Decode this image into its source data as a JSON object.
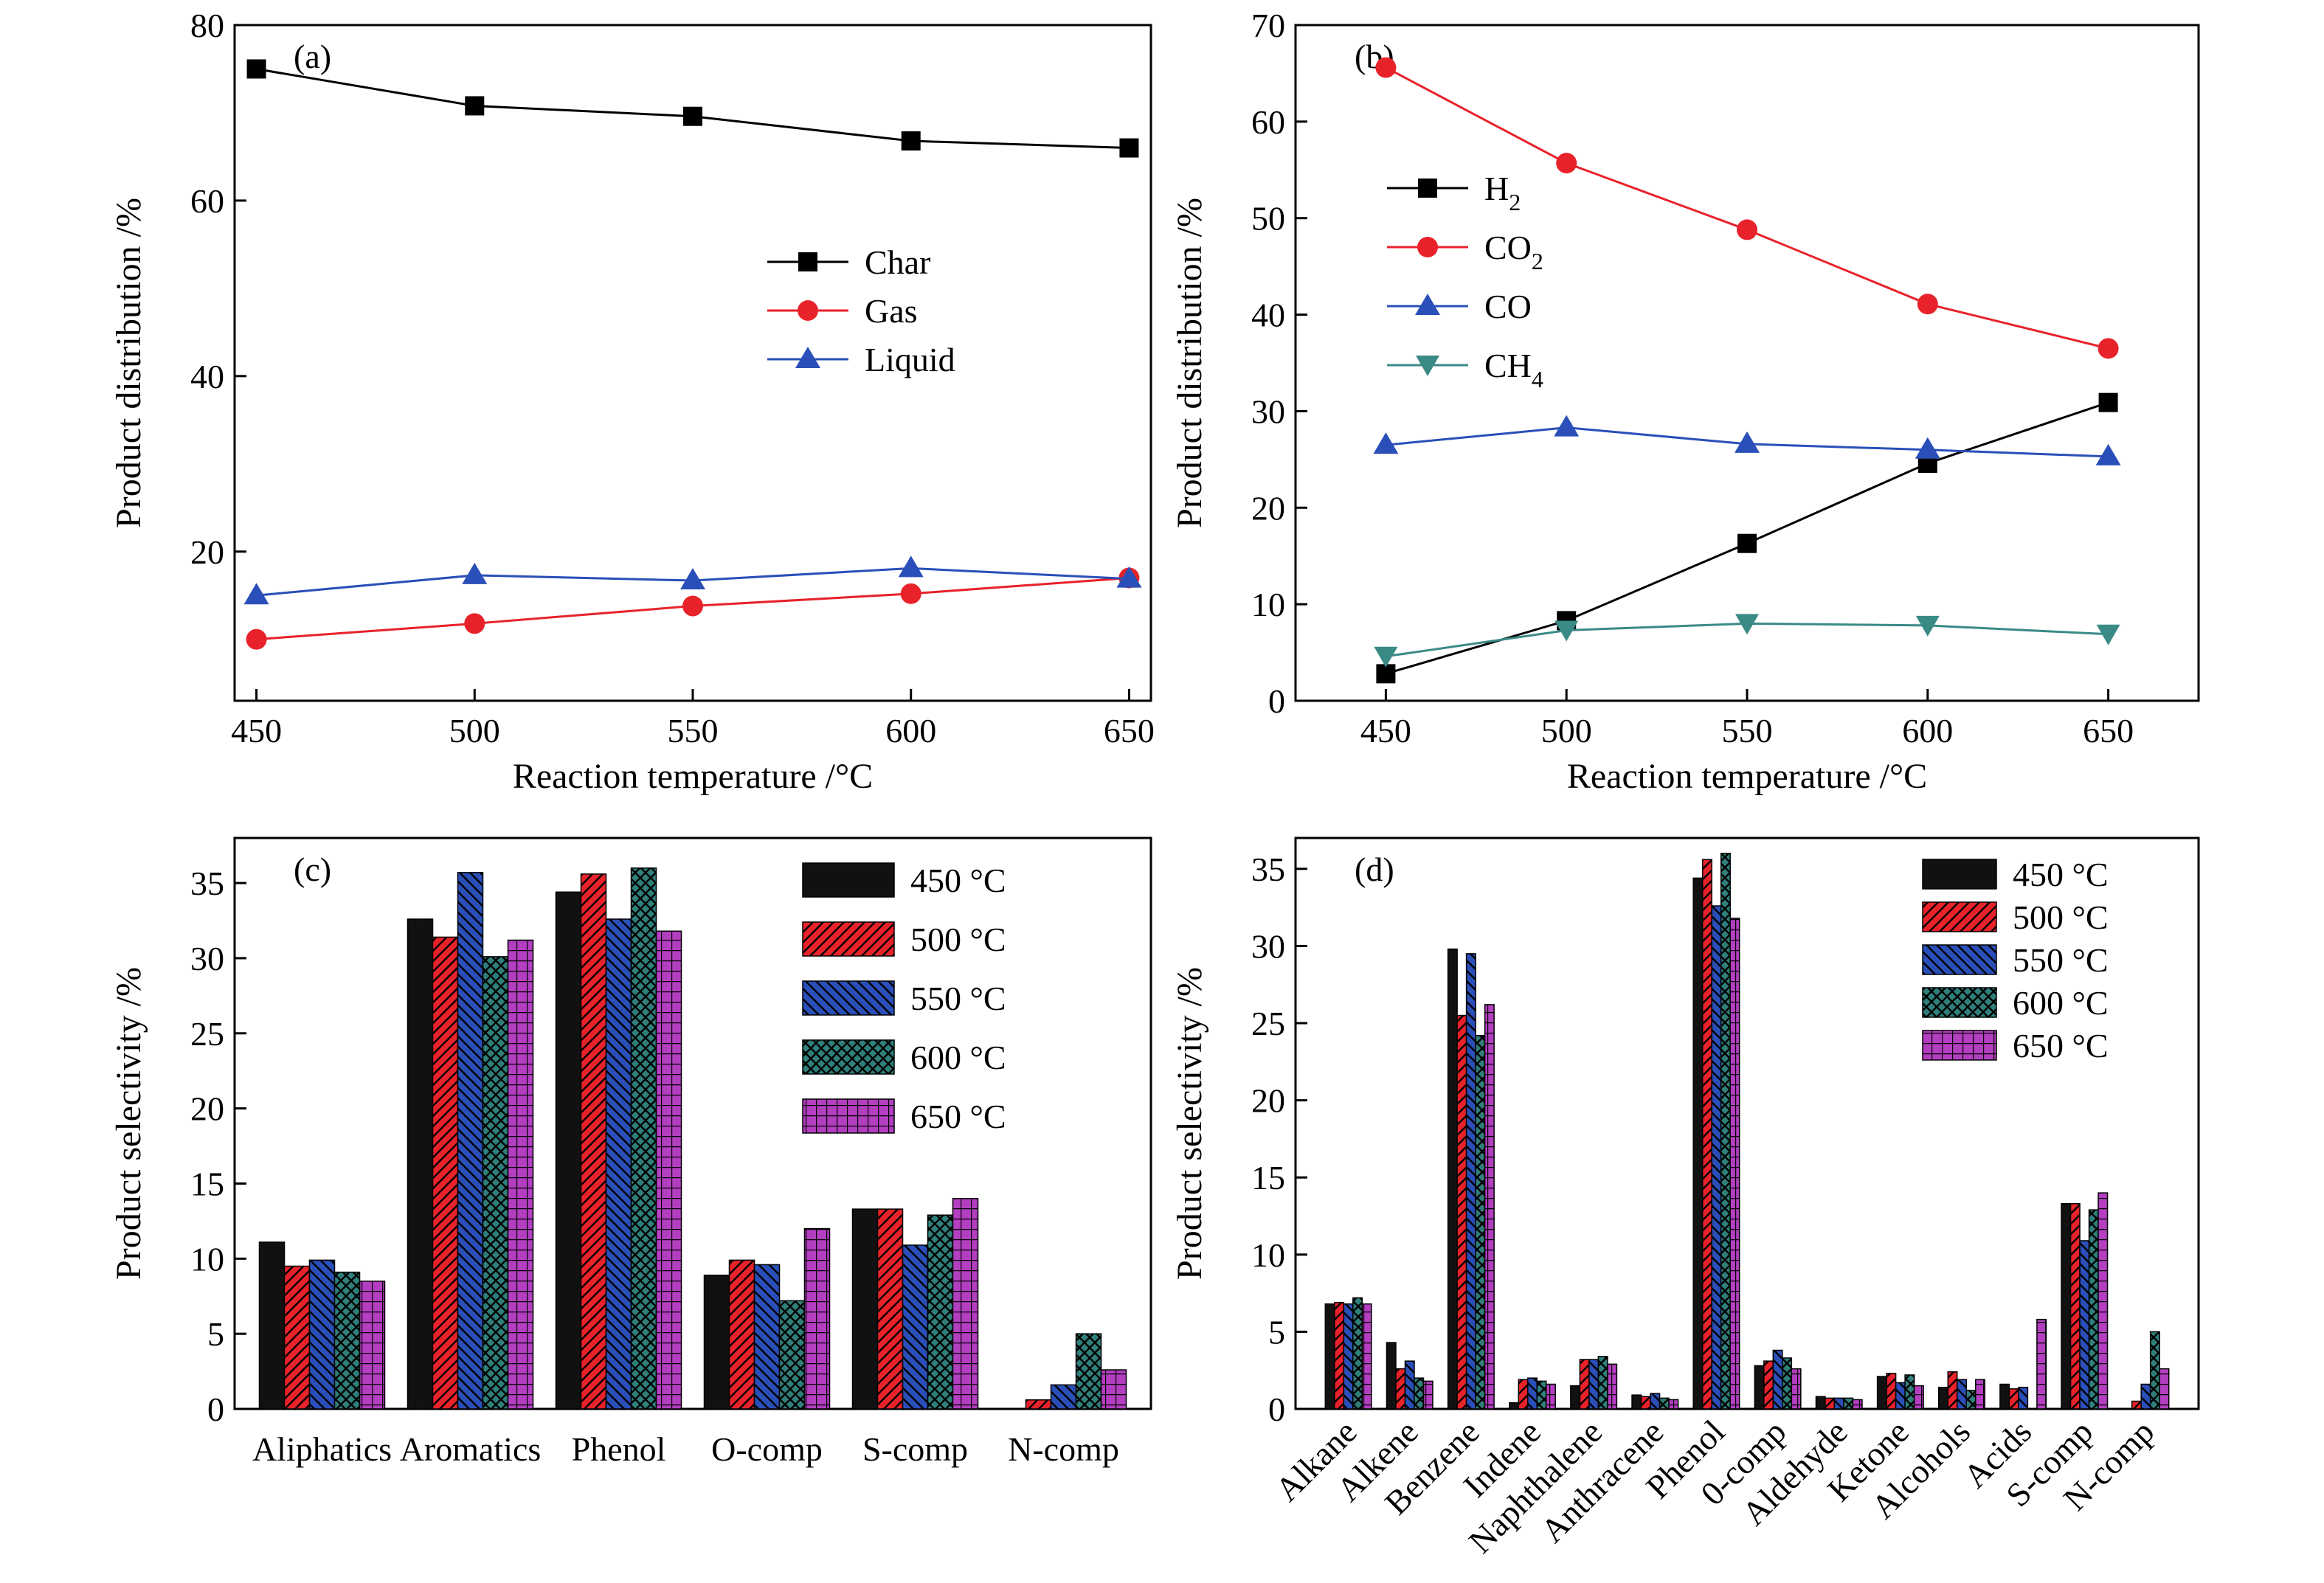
{
  "colors": {
    "black": "#111111",
    "red": "#e8222a",
    "blue": "#2a4fb8",
    "teal": "#2f7f7a",
    "purple": "#b33fc0",
    "line_black": "#000000",
    "line_red": "#e8222a",
    "line_blue": "#2a4fb8",
    "line_teal": "#3a8a86"
  },
  "chart_data": [
    {
      "id": "a",
      "type": "line",
      "panel_label": "(a)",
      "xlabel": "Reaction temperature /°C",
      "ylabel": "Product distribution /%",
      "x": [
        450,
        500,
        550,
        600,
        650
      ],
      "xlim": [
        445,
        655
      ],
      "ylim": [
        3,
        80
      ],
      "xticks": [
        450,
        500,
        550,
        600,
        650
      ],
      "yticks": [
        20,
        40,
        60,
        80
      ],
      "legend_position": "center-right",
      "series": [
        {
          "name": "Char",
          "marker": "square",
          "color": "line_black",
          "values": [
            75.0,
            70.8,
            69.6,
            66.8,
            66.0
          ]
        },
        {
          "name": "Gas",
          "marker": "circle",
          "color": "line_red",
          "values": [
            10.0,
            11.8,
            13.8,
            15.2,
            17.0
          ]
        },
        {
          "name": "Liquid",
          "marker": "triangle-up",
          "color": "line_blue",
          "values": [
            15.0,
            17.3,
            16.7,
            18.1,
            16.9
          ]
        }
      ]
    },
    {
      "id": "b",
      "type": "line",
      "panel_label": "(b)",
      "xlabel": "Reaction temperature /°C",
      "ylabel": "Product distribution /%",
      "x": [
        450,
        500,
        550,
        600,
        650
      ],
      "xlim": [
        425,
        675
      ],
      "ylim": [
        0,
        70
      ],
      "xticks": [
        450,
        500,
        550,
        600,
        650
      ],
      "yticks": [
        0,
        10,
        20,
        30,
        40,
        50,
        60,
        70
      ],
      "legend_position": "upper-left",
      "series": [
        {
          "name": "H2",
          "label_main": "H",
          "label_sub": "2",
          "marker": "square",
          "color": "line_black",
          "values": [
            2.8,
            8.3,
            16.3,
            24.6,
            30.9
          ]
        },
        {
          "name": "CO2",
          "label_main": "CO",
          "label_sub": "2",
          "marker": "circle",
          "color": "line_red",
          "values": [
            65.6,
            55.7,
            48.8,
            41.1,
            36.5
          ]
        },
        {
          "name": "CO",
          "label_main": "CO",
          "label_sub": "",
          "marker": "triangle-up",
          "color": "line_blue",
          "values": [
            26.5,
            28.3,
            26.6,
            26.0,
            25.3
          ]
        },
        {
          "name": "CH4",
          "label_main": "CH",
          "label_sub": "4",
          "marker": "triangle-down",
          "color": "line_teal",
          "values": [
            4.6,
            7.3,
            8.0,
            7.8,
            6.9
          ]
        }
      ]
    },
    {
      "id": "c",
      "type": "bar",
      "panel_label": "(c)",
      "xlabel": "",
      "ylabel": "Product selectivity /%",
      "ylim": [
        0,
        38
      ],
      "yticks": [
        0,
        5,
        10,
        15,
        20,
        25,
        30,
        35
      ],
      "legend_position": "top-right",
      "categories": [
        "Aliphatics",
        "Aromatics",
        "Phenol",
        "O-comp",
        "S-comp",
        "N-comp"
      ],
      "series": [
        {
          "name": "450 °C",
          "color": "black",
          "pattern": "solid",
          "values": [
            11.1,
            32.6,
            34.4,
            8.9,
            13.3,
            0.0
          ]
        },
        {
          "name": "500 °C",
          "color": "red",
          "pattern": "hatch-fwd",
          "values": [
            9.5,
            31.4,
            35.6,
            9.9,
            13.3,
            0.6
          ]
        },
        {
          "name": "550 °C",
          "color": "blue",
          "pattern": "hatch-back",
          "values": [
            9.9,
            35.7,
            32.6,
            9.6,
            10.9,
            1.6
          ]
        },
        {
          "name": "600 °C",
          "color": "teal",
          "pattern": "crosshatch",
          "values": [
            9.1,
            30.1,
            36.0,
            7.2,
            12.9,
            5.0
          ]
        },
        {
          "name": "650 °C",
          "color": "purple",
          "pattern": "grid",
          "values": [
            8.5,
            31.2,
            31.8,
            12.0,
            14.0,
            2.6
          ]
        }
      ]
    },
    {
      "id": "d",
      "type": "bar",
      "panel_label": "(d)",
      "xlabel": "",
      "ylabel": "Product selectivity /%",
      "ylim": [
        0,
        37
      ],
      "yticks": [
        0,
        5,
        10,
        15,
        20,
        25,
        30,
        35
      ],
      "legend_position": "top-right",
      "categories": [
        "Alkane",
        "Alkene",
        "Benzene",
        "Indene",
        "Naphthalene",
        "Anthracene",
        "Phenol",
        "0-comp",
        "Aldehyde",
        "Ketone",
        "Alcohols",
        "Acids",
        "S-comp",
        "N-comp"
      ],
      "series": [
        {
          "name": "450 °C",
          "color": "black",
          "pattern": "solid",
          "values": [
            6.8,
            4.3,
            29.8,
            0.4,
            1.5,
            0.9,
            34.4,
            2.8,
            0.8,
            2.1,
            1.4,
            1.6,
            13.3,
            0.0
          ]
        },
        {
          "name": "500 °C",
          "color": "red",
          "pattern": "hatch-fwd",
          "values": [
            6.9,
            2.6,
            25.5,
            1.9,
            3.2,
            0.8,
            35.6,
            3.1,
            0.7,
            2.3,
            2.4,
            1.3,
            13.3,
            0.5
          ]
        },
        {
          "name": "550 °C",
          "color": "blue",
          "pattern": "hatch-back",
          "values": [
            6.8,
            3.1,
            29.5,
            2.0,
            3.2,
            1.0,
            32.6,
            3.8,
            0.7,
            1.7,
            1.9,
            1.4,
            10.9,
            1.6
          ]
        },
        {
          "name": "600 °C",
          "color": "teal",
          "pattern": "crosshatch",
          "values": [
            7.2,
            2.0,
            24.2,
            1.8,
            3.4,
            0.7,
            36.0,
            3.3,
            0.7,
            2.2,
            1.2,
            0.0,
            12.9,
            5.0
          ]
        },
        {
          "name": "650 °C",
          "color": "purple",
          "pattern": "grid",
          "values": [
            6.8,
            1.8,
            26.2,
            1.6,
            2.9,
            0.6,
            31.8,
            2.6,
            0.6,
            1.5,
            1.9,
            5.8,
            14.0,
            2.6
          ]
        }
      ]
    }
  ]
}
